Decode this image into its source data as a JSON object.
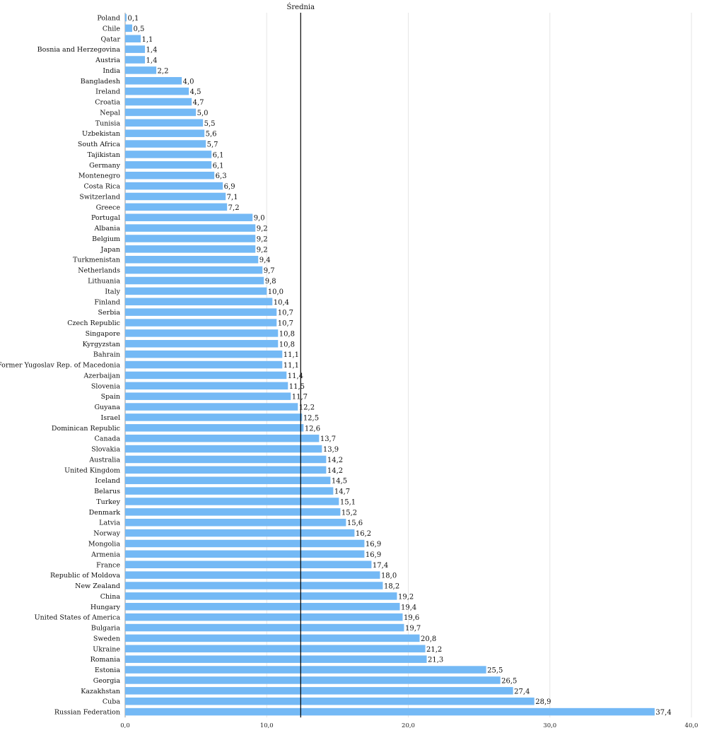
{
  "chart_data": {
    "type": "bar",
    "orientation": "horizontal",
    "title": "",
    "xlabel": "",
    "ylabel": "",
    "xlim": [
      0,
      40
    ],
    "x_ticks": [
      "0,0",
      "10,0",
      "20,0",
      "30,0",
      "40,0"
    ],
    "x_tick_values": [
      0,
      10,
      20,
      30,
      40
    ],
    "grid": "vertical",
    "bar_color": "#74b9f5",
    "reference_line": {
      "label": "Średnia",
      "value": 12.4,
      "color": "#000000"
    },
    "categories": [
      "Poland",
      "Chile",
      "Qatar",
      "Bosnia and Herzegovina",
      "Austria",
      "India",
      "Bangladesh",
      "Ireland",
      "Croatia",
      "Nepal",
      "Tunisia",
      "Uzbekistan",
      "South Africa",
      "Tajikistan",
      "Germany",
      "Montenegro",
      "Costa Rica",
      "Switzerland",
      "Greece",
      "Portugal",
      "Albania",
      "Belgium",
      "Japan",
      "Turkmenistan",
      "Netherlands",
      "Lithuania",
      "Italy",
      "Finland",
      "Serbia",
      "Czech Republic",
      "Singapore",
      "Kyrgyzstan",
      "Bahrain",
      "The Former Yugoslav Rep. of Macedonia",
      "Azerbaijan",
      "Slovenia",
      "Spain",
      "Guyana",
      "Israel",
      "Dominican Republic",
      "Canada",
      "Slovakia",
      "Australia",
      "United Kingdom",
      "Iceland",
      "Belarus",
      "Turkey",
      "Denmark",
      "Latvia",
      "Norway",
      "Mongolia",
      "Armenia",
      "France",
      "Republic of Moldova",
      "New Zealand",
      "China",
      "Hungary",
      "United States of America",
      "Bulgaria",
      "Sweden",
      "Ukraine",
      "Romania",
      "Estonia",
      "Georgia",
      "Kazakhstan",
      "Cuba",
      "Russian Federation"
    ],
    "values": [
      0.1,
      0.5,
      1.1,
      1.4,
      1.4,
      2.2,
      4.0,
      4.5,
      4.7,
      5.0,
      5.5,
      5.6,
      5.7,
      6.1,
      6.1,
      6.3,
      6.9,
      7.1,
      7.2,
      9.0,
      9.2,
      9.2,
      9.2,
      9.4,
      9.7,
      9.8,
      10.0,
      10.4,
      10.7,
      10.7,
      10.8,
      10.8,
      11.1,
      11.1,
      11.4,
      11.5,
      11.7,
      12.2,
      12.5,
      12.6,
      13.7,
      13.9,
      14.2,
      14.2,
      14.5,
      14.7,
      15.1,
      15.2,
      15.6,
      16.2,
      16.9,
      16.9,
      17.4,
      18.0,
      18.2,
      19.2,
      19.4,
      19.6,
      19.7,
      20.8,
      21.2,
      21.3,
      25.5,
      26.5,
      27.4,
      28.9,
      37.4
    ],
    "value_labels": [
      "0,1",
      "0,5",
      "1,1",
      "1,4",
      "1,4",
      "2,2",
      "4,0",
      "4,5",
      "4,7",
      "5,0",
      "5,5",
      "5,6",
      "5,7",
      "6,1",
      "6,1",
      "6,3",
      "6,9",
      "7,1",
      "7,2",
      "9,0",
      "9,2",
      "9,2",
      "9,2",
      "9,4",
      "9,7",
      "9,8",
      "10,0",
      "10,4",
      "10,7",
      "10,7",
      "10,8",
      "10,8",
      "11,1",
      "11,1",
      "11,4",
      "11,5",
      "11,7",
      "12,2",
      "12,5",
      "12,6",
      "13,7",
      "13,9",
      "14,2",
      "14,2",
      "14,5",
      "14,7",
      "15,1",
      "15,2",
      "15,6",
      "16,2",
      "16,9",
      "16,9",
      "17,4",
      "18,0",
      "18,2",
      "19,2",
      "19,4",
      "19,6",
      "19,7",
      "20,8",
      "21,2",
      "21,3",
      "25,5",
      "26,5",
      "27,4",
      "28,9",
      "37,4"
    ]
  }
}
